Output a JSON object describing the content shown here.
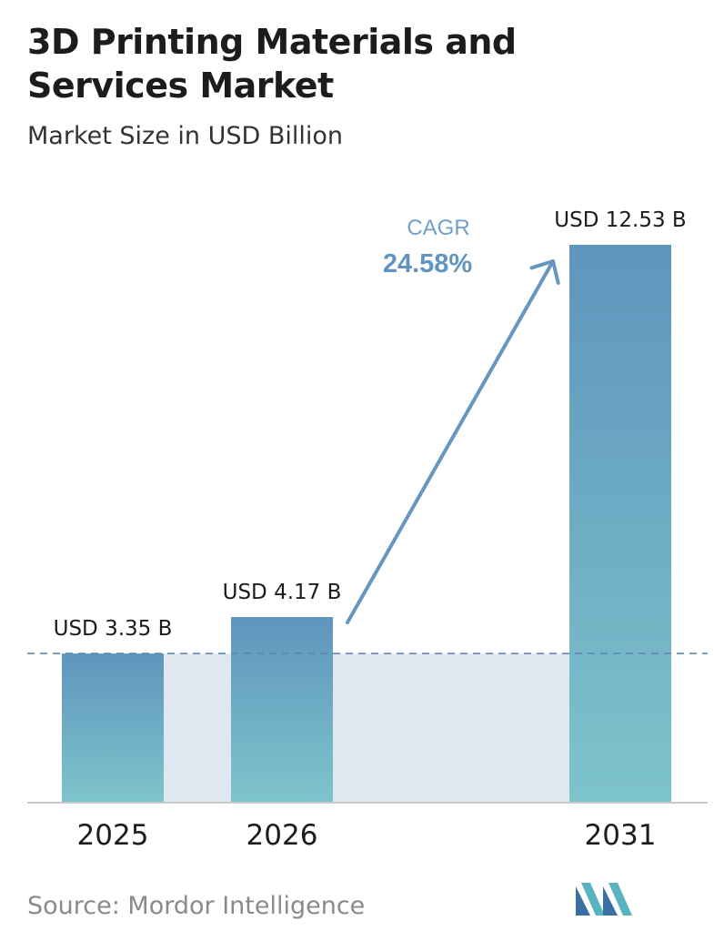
{
  "title": "3D Printing Materials and Services Market",
  "subtitle": "Market Size in USD Billion",
  "source": "Source:  Mordor Intelligence",
  "logo": "mordor-intelligence-logo",
  "colors": {
    "bar_top": "#5e95bd",
    "bar_bottom": "#7ec4cb",
    "band": "#dfe8f1",
    "dash": "#5e86b0",
    "arrow": "#6696c1",
    "cagr_label": "#6fa0c9",
    "cagr_value": "#5f95c0"
  },
  "cagr": {
    "label": "CAGR",
    "value": "24.58%"
  },
  "chart_data": {
    "type": "bar",
    "categories": [
      "2025",
      "2026",
      "2031"
    ],
    "values": [
      3.35,
      4.17,
      12.53
    ],
    "data_labels": [
      "USD 3.35 B",
      "USD 4.17 B",
      "USD 12.53 B"
    ],
    "title": "3D Printing Materials and Services Market",
    "subtitle": "Market Size in USD Billion",
    "ylim": [
      0,
      12.53
    ],
    "grid": false,
    "annotation": {
      "text": "CAGR",
      "value": "24.58%",
      "arrow_from": "2026",
      "arrow_to": "2031"
    }
  }
}
